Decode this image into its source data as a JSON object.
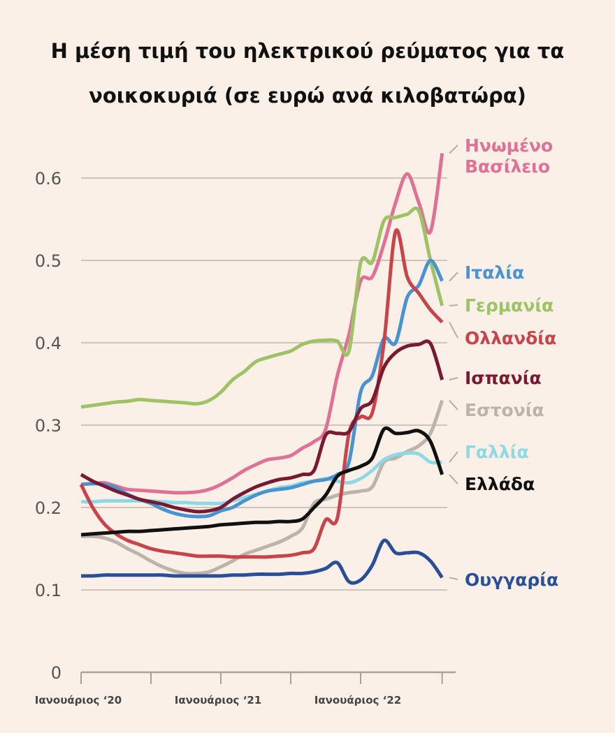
{
  "chart_data": {
    "type": "line",
    "title": "Η μέση τιμή του ηλεκτρικού ρεύματος για τα νοικοκυριά (σε ευρώ ανά κιλοβατώρα)",
    "title_lines": [
      "Η μέση τιμή του ηλεκτρικού ρεύματος για τα",
      "νοικοκυριά (σε ευρώ ανά κιλοβατώρα)"
    ],
    "xlabel": "",
    "ylabel": "",
    "x": [
      "2020-01",
      "2020-02",
      "2020-03",
      "2020-04",
      "2020-05",
      "2020-06",
      "2020-07",
      "2020-08",
      "2020-09",
      "2020-10",
      "2020-11",
      "2020-12",
      "2021-01",
      "2021-02",
      "2021-03",
      "2021-04",
      "2021-05",
      "2021-06",
      "2021-07",
      "2021-08",
      "2021-09",
      "2021-10",
      "2021-11",
      "2021-12",
      "2022-01",
      "2022-02",
      "2022-03",
      "2022-04",
      "2022-05",
      "2022-06",
      "2022-07",
      "2022-08"
    ],
    "x_tick_labels": [
      {
        "at": "2020-01",
        "label": "Ιανουάριος ‘20"
      },
      {
        "at": "2021-01",
        "label": "Ιανουάριος ‘21"
      },
      {
        "at": "2022-01",
        "label": "Ιανουάριος ‘22"
      }
    ],
    "x_tick_marks": [
      "2020-01",
      "2020-07",
      "2021-01",
      "2021-07",
      "2022-01",
      "2022-08"
    ],
    "ylim": [
      0,
      0.65
    ],
    "y_ticks": [
      "0",
      "0.1",
      "0.2",
      "0.3",
      "0.4",
      "0.5",
      "0.6"
    ],
    "grid": "horizontal",
    "legend": "direct labels at right",
    "series": [
      {
        "name": "Ηνωμένο Βασίλειο",
        "label_lines": [
          "Ηνωμένο",
          "Βασίλειο"
        ],
        "color": "#e07196",
        "values": [
          0.228,
          0.229,
          0.23,
          0.226,
          0.222,
          0.221,
          0.22,
          0.219,
          0.218,
          0.218,
          0.219,
          0.222,
          0.228,
          0.236,
          0.245,
          0.252,
          0.258,
          0.26,
          0.263,
          0.272,
          0.28,
          0.295,
          0.36,
          0.41,
          0.475,
          0.48,
          0.52,
          0.57,
          0.605,
          0.57,
          0.535,
          0.63
        ]
      },
      {
        "name": "Ιταλία",
        "label_lines": [
          "Ιταλία"
        ],
        "color": "#4a93d1",
        "values": [
          0.228,
          0.229,
          0.228,
          0.224,
          0.216,
          0.21,
          0.205,
          0.198,
          0.193,
          0.19,
          0.189,
          0.19,
          0.196,
          0.2,
          0.208,
          0.215,
          0.22,
          0.222,
          0.224,
          0.228,
          0.232,
          0.234,
          0.24,
          0.255,
          0.34,
          0.36,
          0.405,
          0.4,
          0.455,
          0.47,
          0.5,
          0.475
        ]
      },
      {
        "name": "Γερμανία",
        "label_lines": [
          "Γερμανία"
        ],
        "color": "#9dc365",
        "values": [
          0.322,
          0.324,
          0.326,
          0.328,
          0.329,
          0.331,
          0.33,
          0.329,
          0.328,
          0.327,
          0.326,
          0.33,
          0.34,
          0.355,
          0.365,
          0.377,
          0.382,
          0.386,
          0.39,
          0.398,
          0.402,
          0.403,
          0.402,
          0.39,
          0.497,
          0.498,
          0.548,
          0.552,
          0.556,
          0.56,
          0.5,
          0.445
        ]
      },
      {
        "name": "Ολλανδία",
        "label_lines": [
          "Ολλανδία"
        ],
        "color": "#c8444b",
        "values": [
          0.228,
          0.2,
          0.18,
          0.168,
          0.16,
          0.155,
          0.15,
          0.147,
          0.145,
          0.143,
          0.141,
          0.141,
          0.141,
          0.14,
          0.14,
          0.14,
          0.14,
          0.141,
          0.142,
          0.145,
          0.15,
          0.185,
          0.187,
          0.29,
          0.31,
          0.315,
          0.4,
          0.535,
          0.48,
          0.46,
          0.44,
          0.425
        ]
      },
      {
        "name": "Ισπανία",
        "label_lines": [
          "Ισπανία"
        ],
        "color": "#7a1a32",
        "values": [
          0.24,
          0.232,
          0.226,
          0.22,
          0.215,
          0.21,
          0.207,
          0.204,
          0.2,
          0.197,
          0.195,
          0.196,
          0.2,
          0.21,
          0.218,
          0.225,
          0.23,
          0.234,
          0.236,
          0.24,
          0.245,
          0.288,
          0.29,
          0.292,
          0.32,
          0.33,
          0.37,
          0.388,
          0.396,
          0.398,
          0.399,
          0.355
        ]
      },
      {
        "name": "Εστονία",
        "label_lines": [
          "Εστονία"
        ],
        "color": "#bcb3ab",
        "values": [
          0.165,
          0.165,
          0.163,
          0.158,
          0.15,
          0.143,
          0.135,
          0.128,
          0.123,
          0.12,
          0.12,
          0.122,
          0.128,
          0.135,
          0.143,
          0.148,
          0.153,
          0.158,
          0.165,
          0.175,
          0.205,
          0.21,
          0.215,
          0.218,
          0.22,
          0.225,
          0.255,
          0.26,
          0.268,
          0.275,
          0.29,
          0.33
        ]
      },
      {
        "name": "Γαλλία",
        "label_lines": [
          "Γαλλία"
        ],
        "color": "#8fd9e6",
        "values": [
          0.207,
          0.207,
          0.208,
          0.208,
          0.208,
          0.208,
          0.208,
          0.207,
          0.206,
          0.206,
          0.205,
          0.205,
          0.205,
          0.208,
          0.212,
          0.216,
          0.22,
          0.224,
          0.226,
          0.23,
          0.232,
          0.235,
          0.232,
          0.23,
          0.235,
          0.245,
          0.258,
          0.264,
          0.266,
          0.265,
          0.255,
          0.255
        ]
      },
      {
        "name": "Ελλάδα",
        "label_lines": [
          "Ελλάδα"
        ],
        "color": "#111111",
        "values": [
          0.167,
          0.168,
          0.169,
          0.17,
          0.171,
          0.171,
          0.172,
          0.173,
          0.174,
          0.175,
          0.176,
          0.177,
          0.179,
          0.18,
          0.181,
          0.182,
          0.182,
          0.183,
          0.183,
          0.186,
          0.2,
          0.215,
          0.238,
          0.245,
          0.25,
          0.26,
          0.295,
          0.29,
          0.291,
          0.293,
          0.28,
          0.24
        ]
      },
      {
        "name": "Ουγγαρία",
        "label_lines": [
          "Ουγγαρία"
        ],
        "color": "#2a4f96",
        "values": [
          0.117,
          0.117,
          0.118,
          0.118,
          0.118,
          0.118,
          0.118,
          0.118,
          0.117,
          0.117,
          0.117,
          0.117,
          0.117,
          0.118,
          0.118,
          0.119,
          0.119,
          0.119,
          0.12,
          0.12,
          0.122,
          0.126,
          0.133,
          0.11,
          0.112,
          0.13,
          0.16,
          0.145,
          0.145,
          0.145,
          0.135,
          0.115
        ]
      }
    ]
  }
}
